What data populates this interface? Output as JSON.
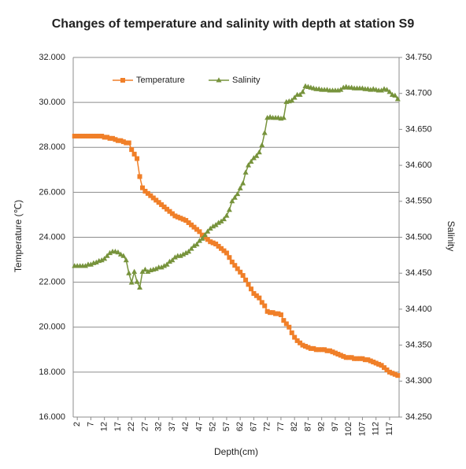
{
  "chart_data": {
    "type": "line",
    "title": "Changes of temperature and salinity with depth at station S9",
    "x_label": "Depth(cm)",
    "y_label": "Temperature (℃)",
    "y2_label": "Salinity",
    "categories": [
      null,
      2,
      null,
      null,
      null,
      null,
      7,
      null,
      null,
      null,
      null,
      12,
      null,
      null,
      null,
      null,
      17,
      null,
      null,
      null,
      null,
      22,
      null,
      null,
      null,
      null,
      27,
      null,
      null,
      null,
      null,
      32,
      null,
      null,
      null,
      null,
      37,
      null,
      null,
      null,
      null,
      42,
      null,
      null,
      null,
      null,
      47,
      null,
      null,
      null,
      null,
      52,
      null,
      null,
      null,
      null,
      57,
      null,
      null,
      null,
      null,
      62,
      null,
      null,
      null,
      null,
      67,
      null,
      null,
      null,
      null,
      72,
      null,
      null,
      null,
      null,
      77,
      null,
      null,
      null,
      null,
      82,
      null,
      null,
      null,
      null,
      87,
      null,
      null,
      null,
      null,
      92,
      null,
      null,
      null,
      null,
      97,
      null,
      null,
      null,
      null,
      102,
      null,
      null,
      null,
      null,
      107,
      null,
      null,
      null,
      null,
      112,
      null,
      null,
      null,
      null,
      117,
      null,
      null,
      null
    ],
    "series": [
      {
        "name": "Temperature",
        "color": "#f07f28",
        "marker": "square",
        "axis": "y",
        "values": [
          28.5,
          28.5,
          28.5,
          28.5,
          28.5,
          28.5,
          28.5,
          28.5,
          28.5,
          28.5,
          28.5,
          28.45,
          28.45,
          28.4,
          28.4,
          28.35,
          28.3,
          28.3,
          28.25,
          28.2,
          28.2,
          27.9,
          27.7,
          27.5,
          26.7,
          26.2,
          26.05,
          25.95,
          25.85,
          25.75,
          25.65,
          25.55,
          25.45,
          25.35,
          25.25,
          25.15,
          25.05,
          24.95,
          24.9,
          24.85,
          24.8,
          24.75,
          24.65,
          24.55,
          24.45,
          24.35,
          24.25,
          24.1,
          24.0,
          23.9,
          23.8,
          23.75,
          23.7,
          23.6,
          23.5,
          23.4,
          23.3,
          23.1,
          22.9,
          22.75,
          22.6,
          22.45,
          22.3,
          22.1,
          21.9,
          21.7,
          21.5,
          21.4,
          21.3,
          21.1,
          20.95,
          20.7,
          20.65,
          20.65,
          20.6,
          20.6,
          20.55,
          20.3,
          20.15,
          20.0,
          19.75,
          19.55,
          19.4,
          19.3,
          19.2,
          19.15,
          19.1,
          19.05,
          19.05,
          19.0,
          19.0,
          19.0,
          19.0,
          18.95,
          18.95,
          18.9,
          18.85,
          18.8,
          18.75,
          18.7,
          18.65,
          18.65,
          18.65,
          18.6,
          18.6,
          18.6,
          18.6,
          18.55,
          18.55,
          18.5,
          18.45,
          18.4,
          18.35,
          18.3,
          18.2,
          18.1,
          18.0,
          17.95,
          17.9,
          17.85
        ]
      },
      {
        "name": "Salinity",
        "color": "#77933c",
        "marker": "triangle",
        "axis": "y2",
        "values": [
          34.46,
          34.46,
          34.46,
          34.46,
          34.46,
          34.462,
          34.462,
          34.464,
          34.465,
          34.467,
          34.468,
          34.47,
          34.474,
          34.478,
          34.48,
          34.48,
          34.479,
          34.476,
          34.474,
          34.468,
          34.45,
          34.437,
          34.452,
          34.438,
          34.43,
          34.452,
          34.455,
          34.452,
          34.454,
          34.455,
          34.456,
          34.458,
          34.458,
          34.46,
          34.462,
          34.466,
          34.468,
          34.472,
          34.474,
          34.474,
          34.476,
          34.478,
          34.48,
          34.484,
          34.488,
          34.49,
          34.495,
          34.498,
          34.503,
          34.508,
          34.512,
          34.515,
          34.517,
          34.52,
          34.522,
          34.525,
          34.53,
          34.538,
          34.55,
          34.555,
          34.56,
          34.568,
          34.575,
          34.59,
          34.6,
          34.605,
          34.61,
          34.613,
          34.618,
          34.628,
          34.645,
          34.666,
          34.667,
          34.666,
          34.666,
          34.666,
          34.665,
          34.666,
          34.688,
          34.689,
          34.69,
          34.694,
          34.698,
          34.698,
          34.702,
          34.71,
          34.709,
          34.708,
          34.707,
          34.706,
          34.706,
          34.705,
          34.705,
          34.705,
          34.704,
          34.704,
          34.704,
          34.704,
          34.705,
          34.708,
          34.709,
          34.708,
          34.708,
          34.707,
          34.707,
          34.707,
          34.707,
          34.706,
          34.706,
          34.705,
          34.706,
          34.705,
          34.704,
          34.704,
          34.706,
          34.705,
          34.702,
          34.698,
          34.697,
          34.692
        ]
      }
    ],
    "ylim": [
      16,
      32
    ],
    "yticks": [
      {
        "value": 16,
        "label": "16.000"
      },
      {
        "value": 18,
        "label": "18.000"
      },
      {
        "value": 20,
        "label": "20.000"
      },
      {
        "value": 22,
        "label": "22.000"
      },
      {
        "value": 24,
        "label": "24.000"
      },
      {
        "value": 26,
        "label": "26.000"
      },
      {
        "value": 28,
        "label": "28.000"
      },
      {
        "value": 30,
        "label": "30.000"
      },
      {
        "value": 32,
        "label": "32.000"
      }
    ],
    "y2lim": [
      34.25,
      34.75
    ],
    "y2ticks": [
      {
        "value": 34.25,
        "label": "34.250"
      },
      {
        "value": 34.3,
        "label": "34.300"
      },
      {
        "value": 34.35,
        "label": "34.350"
      },
      {
        "value": 34.4,
        "label": "34.400"
      },
      {
        "value": 34.45,
        "label": "34.450"
      },
      {
        "value": 34.5,
        "label": "34.500"
      },
      {
        "value": 34.55,
        "label": "34.550"
      },
      {
        "value": 34.6,
        "label": "34.600"
      },
      {
        "value": 34.65,
        "label": "34.650"
      },
      {
        "value": 34.7,
        "label": "34.700"
      },
      {
        "value": 34.75,
        "label": "34.750"
      }
    ],
    "grid": true,
    "legend": "top-left"
  }
}
